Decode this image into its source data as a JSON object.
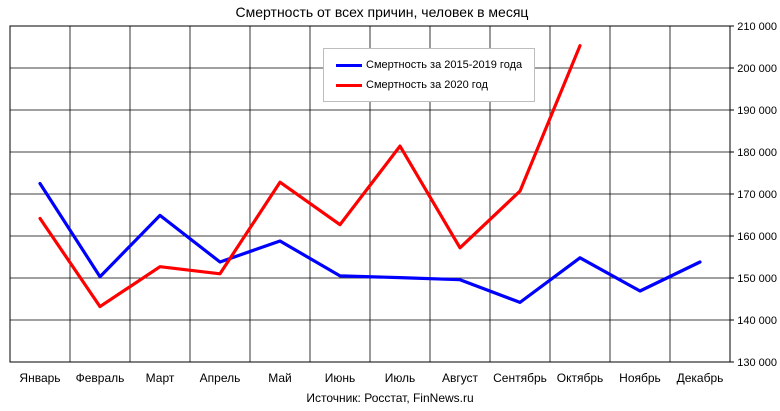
{
  "chart_data": {
    "type": "line",
    "title": "Смертность от всех причин, человек в месяц",
    "source": "Источник: Росстат, FinNews.ru",
    "categories": [
      "Январь",
      "Февраль",
      "Март",
      "Апрель",
      "Май",
      "Июнь",
      "Июль",
      "Август",
      "Сентябрь",
      "Октябрь",
      "Ноябрь",
      "Декабрь"
    ],
    "ylim": [
      130000,
      210000
    ],
    "yticks": [
      130000,
      140000,
      150000,
      160000,
      170000,
      180000,
      190000,
      200000,
      210000
    ],
    "ytick_labels": [
      "130 000",
      "140 000",
      "150 000",
      "160 000",
      "170 000",
      "180 000",
      "190 000",
      "200 000",
      "210 000"
    ],
    "y_axis_side": "right",
    "grid": true,
    "legend_position": "top-center",
    "series": [
      {
        "name": "Смертность за 2015-2019  года",
        "color": "#0000ff",
        "values": [
          172500,
          150300,
          164900,
          153800,
          158800,
          150500,
          150100,
          149600,
          144200,
          154800,
          146900,
          153800
        ]
      },
      {
        "name": "Смертность за 2020  год",
        "color": "#ff0000",
        "values": [
          164200,
          143200,
          152700,
          151000,
          172800,
          162700,
          181400,
          157200,
          170700,
          205300,
          null,
          null
        ]
      }
    ]
  }
}
